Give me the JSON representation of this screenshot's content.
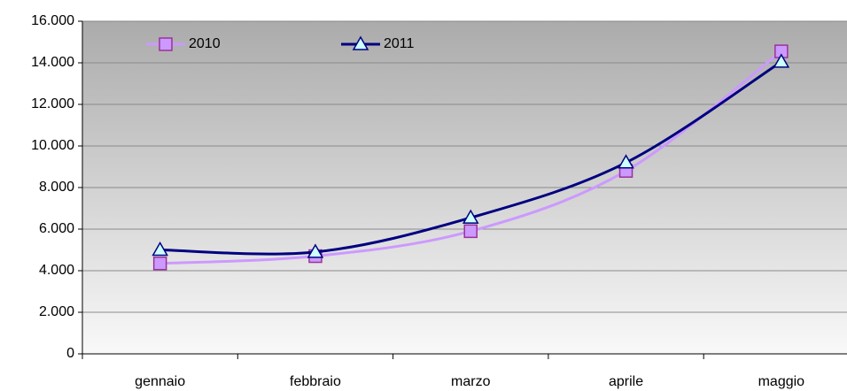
{
  "chart_data": {
    "type": "line",
    "categories": [
      "gennaio",
      "febbraio",
      "marzo",
      "aprile",
      "maggio"
    ],
    "series": [
      {
        "name": "2010",
        "color": "#cc99ff",
        "values": [
          4350,
          4700,
          5900,
          8800,
          14550
        ]
      },
      {
        "name": "2011",
        "color": "#000080",
        "values": [
          5000,
          4900,
          6550,
          9200,
          14050
        ]
      }
    ],
    "ylim": [
      0,
      16000
    ],
    "yticks": [
      0,
      {
        "value": 2000,
        "label": "2.000"
      },
      {
        "value": 4000,
        "label": "4.000"
      },
      {
        "value": 6000,
        "label": "6.000"
      },
      {
        "value": 8000,
        "label": "8.000"
      },
      {
        "value": 10000,
        "label": "10.000"
      },
      {
        "value": 12000,
        "label": "12.000"
      },
      {
        "value": 14000,
        "label": "14.000"
      },
      {
        "value": 16000,
        "label": "16.000"
      }
    ],
    "grid": true,
    "legend": "top-left"
  }
}
